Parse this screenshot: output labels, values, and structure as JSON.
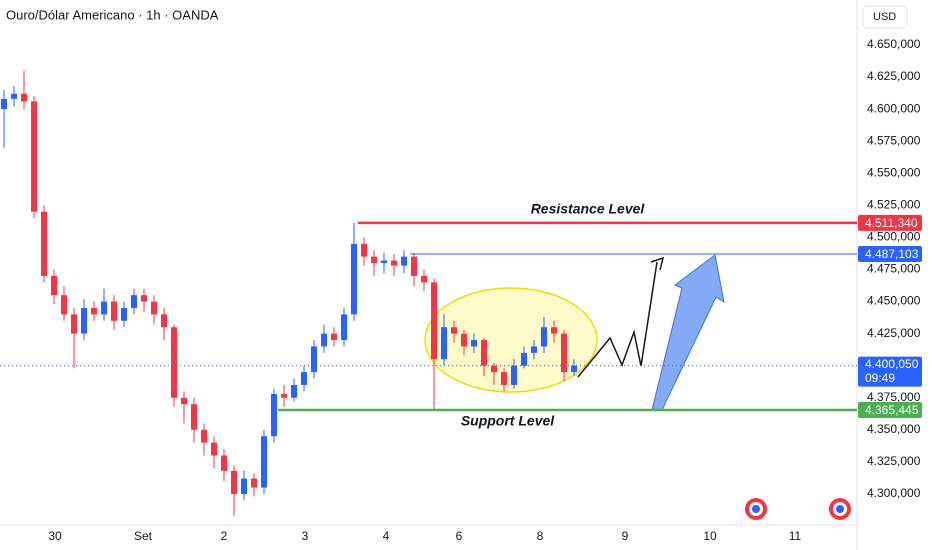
{
  "chart_data": {
    "type": "candlestick",
    "title": "Ouro/Dólar Americano · 1h · OANDA",
    "currency": "USD",
    "up_color": "#2962ff",
    "down_color": "#f23645",
    "open": [
      4600,
      4608,
      4612,
      4606,
      4520,
      4470,
      4455,
      4440,
      4425,
      4445,
      4440,
      4450,
      4435,
      4445,
      4455,
      4450,
      4440,
      4430,
      4375,
      4370,
      4350,
      4340,
      4330,
      4318,
      4300,
      4312,
      4305,
      4345,
      4378,
      4375,
      4385,
      4395,
      4415,
      4425,
      4420,
      4440,
      4495,
      4485,
      4480,
      4482,
      4478,
      4485,
      4470,
      4465,
      4405,
      4430,
      4425,
      4415,
      4420,
      4400,
      4395,
      4385,
      4400,
      4410,
      4415,
      4430,
      4425,
      4395
    ],
    "high": [
      4615,
      4618,
      4630,
      4610,
      4525,
      4475,
      4462,
      4445,
      4452,
      4450,
      4460,
      4455,
      4450,
      4460,
      4460,
      4455,
      4445,
      4432,
      4380,
      4375,
      4355,
      4345,
      4335,
      4322,
      4318,
      4316,
      4350,
      4382,
      4385,
      4390,
      4400,
      4420,
      4432,
      4430,
      4445,
      4511.34,
      4500,
      4490,
      4488,
      4487.1,
      4490,
      4488,
      4475,
      4468,
      4440,
      4435,
      4428,
      4425,
      4422,
      4402,
      4398,
      4405,
      4415,
      4420,
      4438,
      4435,
      4428,
      4405
    ],
    "low": [
      4570,
      4602,
      4600,
      4515,
      4465,
      4448,
      4435,
      4398,
      4420,
      4435,
      4435,
      4428,
      4430,
      4440,
      4442,
      4432,
      4420,
      4368,
      4355,
      4340,
      4330,
      4320,
      4310,
      4283,
      4295,
      4298,
      4300,
      4340,
      4368,
      4372,
      4380,
      4390,
      4410,
      4415,
      4415,
      4435,
      4478,
      4470,
      4472,
      4470,
      4472,
      4462,
      4458,
      4365,
      4400,
      4418,
      4408,
      4410,
      4392,
      4385,
      4380,
      4382,
      4398,
      4405,
      4410,
      4418,
      4388,
      4392
    ],
    "close": [
      4608,
      4612,
      4606,
      4520,
      4470,
      4455,
      4440,
      4425,
      4445,
      4440,
      4450,
      4435,
      4445,
      4455,
      4450,
      4440,
      4430,
      4375,
      4370,
      4350,
      4340,
      4330,
      4318,
      4300,
      4312,
      4305,
      4345,
      4378,
      4375,
      4385,
      4395,
      4415,
      4425,
      4420,
      4440,
      4495,
      4485,
      4480,
      4482,
      4478,
      4485,
      4470,
      4465,
      4405,
      4430,
      4425,
      4415,
      4420,
      4400,
      4395,
      4385,
      4400,
      4410,
      4415,
      4430,
      4425,
      4395,
      4400.05
    ],
    "xlim": [
      -0.4,
      85.1
    ],
    "xticks": [
      {
        "value": 5.1,
        "label": "30"
      },
      {
        "value": 13.9,
        "label": "Set"
      },
      {
        "value": 22,
        "label": "2"
      },
      {
        "value": 30.1,
        "label": "3"
      },
      {
        "value": 38.2,
        "label": "4"
      },
      {
        "value": 45.5,
        "label": "6"
      },
      {
        "value": 53.6,
        "label": "8"
      },
      {
        "value": 62.1,
        "label": "9"
      },
      {
        "value": 70.6,
        "label": "10"
      },
      {
        "value": 79.1,
        "label": "11"
      }
    ],
    "ylim": [
      4275.8,
      4685.08
    ],
    "yticks": [
      {
        "value": 4300,
        "label": "4.300,000"
      },
      {
        "value": 4325,
        "label": "4.325,000"
      },
      {
        "value": 4350,
        "label": "4.350,000"
      },
      {
        "value": 4375,
        "label": "4.375,000"
      },
      {
        "value": 4425,
        "label": "4.425,000"
      },
      {
        "value": 4450,
        "label": "4.450,000"
      },
      {
        "value": 4475,
        "label": "4.475,000"
      },
      {
        "value": 4500,
        "label": "4.500,000"
      },
      {
        "value": 4525,
        "label": "4.525,000"
      },
      {
        "value": 4550,
        "label": "4.550,000"
      },
      {
        "value": 4575,
        "label": "4.575,000"
      },
      {
        "value": 4600,
        "label": "4.600,000"
      },
      {
        "value": 4625,
        "label": "4.625,000"
      },
      {
        "value": 4650,
        "label": "4.650,000"
      }
    ],
    "levels": [
      {
        "label": "Resistance Level",
        "value": 4511.34,
        "value_label": "4.511,340",
        "color": "#f23645",
        "start": 35.4
      },
      {
        "value": 4487.103,
        "value_label": "4.487,103",
        "color": "#2962ff",
        "start": 40.6
      },
      {
        "label": "Support Level",
        "value": 4365.445,
        "value_label": "4.365,445",
        "color": "#4caf50",
        "start": 27.4
      }
    ],
    "last_price": {
      "value": 4400.05,
      "label": "4.400,050",
      "countdown": "09:49",
      "color": "#2962ff"
    }
  }
}
